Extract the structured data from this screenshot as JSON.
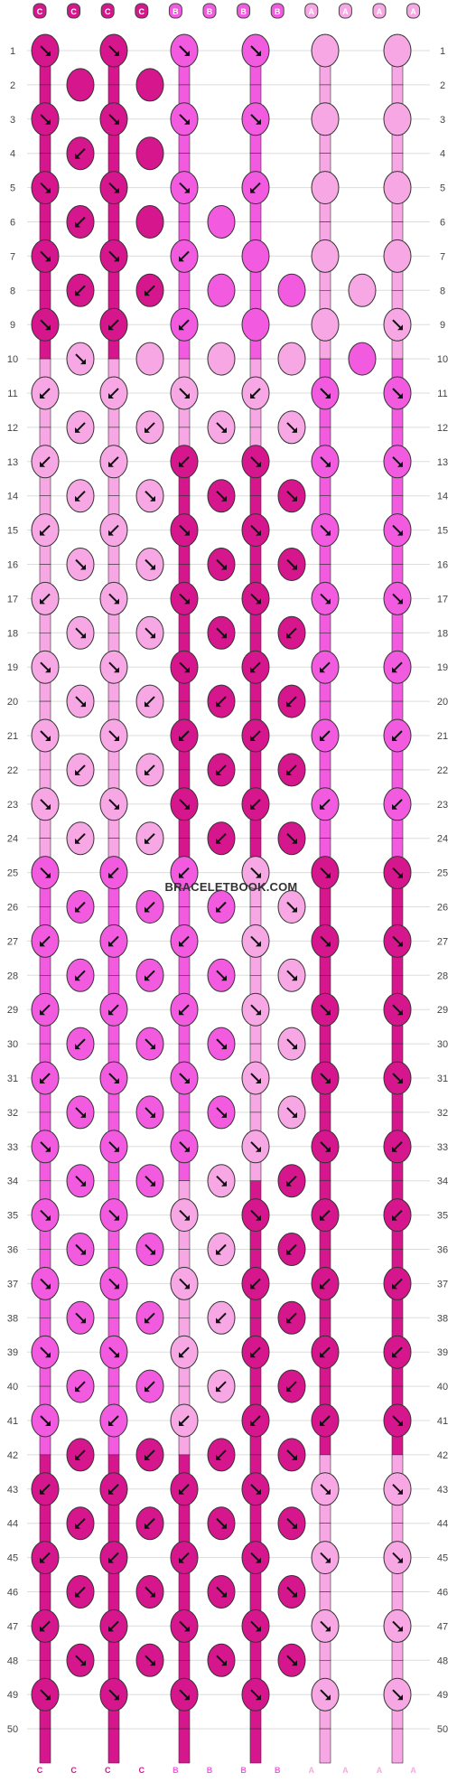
{
  "watermark": "BRACELETBOOK.COM",
  "colors": {
    "C": "#d6168c",
    "B": "#f25bdf",
    "A": "#f7a8e4"
  },
  "strand_labels": [
    "C",
    "C",
    "C",
    "C",
    "B",
    "B",
    "B",
    "B",
    "A",
    "A",
    "A",
    "A"
  ],
  "row_numbers": [
    "1",
    "2",
    "3",
    "4",
    "5",
    "6",
    "7",
    "8",
    "9",
    "10",
    "11",
    "12",
    "13",
    "14",
    "15",
    "16",
    "17",
    "18",
    "19",
    "20",
    "21",
    "22",
    "23",
    "24",
    "25",
    "26",
    "27",
    "28",
    "29",
    "30",
    "31",
    "32",
    "33",
    "34",
    "35",
    "36",
    "37",
    "38",
    "39",
    "40",
    "41",
    "42",
    "43",
    "44",
    "45",
    "46",
    "47",
    "48",
    "49",
    "50"
  ],
  "knot_types": {
    "f": "forward knot ↘",
    "b": "backward knot ↙",
    "fb": "forward-backward",
    "bf": "backward-forward"
  },
  "pattern_rows": [
    "f f f f B B",
    "B B",
    "f f f f B B",
    "b B",
    "f f f b B B",
    "b B B",
    "f f b B B B",
    "b b B B B",
    "f b b B B f",
    "f B B B B",
    "b b f b f f",
    "b b f f",
    "b b b f f f",
    "b f f f",
    "b b f f f f",
    "f f f f",
    "b f f f f f",
    "f f f b",
    "f f f b b b",
    "f b b b",
    "f f b b b b",
    "b b b b",
    "f f f b b b",
    "b b b f",
    "f b b f f f",
    "b b b f",
    "b b b f f f",
    "b b f f",
    "b b b f f f",
    "b f f f",
    "b f f f f f",
    "f f f f",
    "f f f f f b",
    "f f f b",
    "f f f f b b",
    "f f b b",
    "f f f b b b",
    "f b b b",
    "f f b b b b",
    "b b b b",
    "f b b b b f",
    "b b b f",
    "b b b f f f",
    "b b f f",
    "b b b f f f",
    "b f f f",
    "b b f f f f",
    "f f f f",
    "f f f f f f",
    ""
  ]
}
